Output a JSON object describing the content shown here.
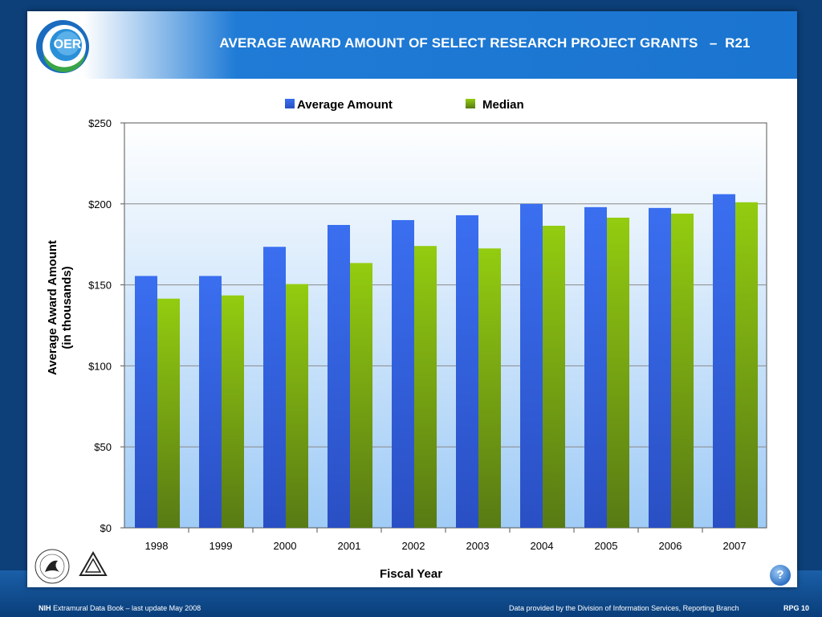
{
  "header": {
    "logo_text": "OER",
    "title": "AVERAGE AWARD AMOUNT OF SELECT RESEARCH PROJECT GRANTS   –  R21"
  },
  "colors": {
    "average": "#2f62e6",
    "median": "#8cc21a",
    "header_blue": "#1a74d0",
    "background": "#0d3f78"
  },
  "chart_data": {
    "type": "bar",
    "categories": [
      "1998",
      "1999",
      "2000",
      "2001",
      "2002",
      "2003",
      "2004",
      "2005",
      "2006",
      "2007"
    ],
    "series": [
      {
        "name": "Average Amount",
        "values": [
          155.5,
          155.5,
          173.5,
          187,
          190,
          193,
          200,
          198,
          197.5,
          206
        ]
      },
      {
        "name": "Median",
        "values": [
          141.5,
          143.5,
          150.5,
          163.5,
          174,
          172.5,
          186.5,
          191.5,
          194,
          201
        ]
      }
    ],
    "title": "",
    "xlabel": "Fiscal Year",
    "ylabel": "Average Award Amount\n(in thousands)",
    "ylim": [
      0,
      250
    ],
    "yticks": [
      0,
      50,
      100,
      150,
      200,
      250
    ],
    "ytick_labels": [
      "$0",
      "$50",
      "$100",
      "$150",
      "$200",
      "$250"
    ],
    "grid": true,
    "legend_position": "top-center"
  },
  "footer": {
    "brand": "NIH",
    "source": "Extramural Data Book – last update May 2008",
    "provider": "Data provided by the Division of Information Services, Reporting Branch",
    "page": "RPG 10",
    "help": "?"
  },
  "seals": {
    "hhs": "hhs-seal",
    "nih": "NATIONAL INSTITUTES OF HEALTH"
  }
}
